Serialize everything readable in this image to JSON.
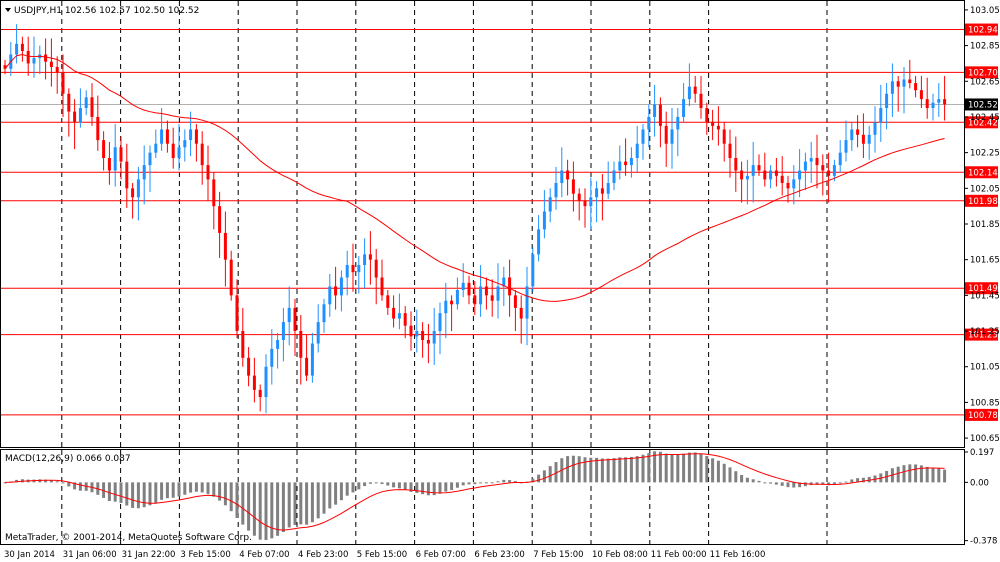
{
  "title": "USDJPY,H1  102.56 102.57 102.50 102.52",
  "copyright": "MetaTrader, © 2001-2014, MetaQuotes Software Corp.",
  "current_price": "102.52",
  "colors": {
    "bull": "#1e90ff",
    "bear": "#ff0000",
    "level": "#ff0000",
    "ma": "#ff0000",
    "histogram": "#808080",
    "signal": "#ff0000",
    "current": "#000000"
  },
  "chart_data": [
    {
      "type": "candlestick",
      "symbol": "USDJPY",
      "timeframe": "H1",
      "last_bar": {
        "open": 102.56,
        "high": 102.57,
        "low": 102.5,
        "close": 102.52
      },
      "ylim": [
        100.6,
        103.1
      ],
      "yticks": [
        "103.05",
        "102.85",
        "102.65",
        "102.45",
        "102.25",
        "102.05",
        "101.85",
        "101.65",
        "101.45",
        "101.25",
        "101.05",
        "100.85",
        "100.65"
      ],
      "xticks": [
        "30 Jan 2014",
        "31 Jan 06:00",
        "31 Jan 22:00",
        "3 Feb 15:00",
        "4 Feb 07:00",
        "4 Feb 23:00",
        "5 Feb 15:00",
        "6 Feb 07:00",
        "6 Feb 23:00",
        "7 Feb 15:00",
        "10 Feb 08:00",
        "11 Feb 00:00",
        "11 Feb 16:00"
      ],
      "levels": [
        "102.94",
        "102.70",
        "102.42",
        "102.14",
        "101.98",
        "101.49",
        "101.23",
        "100.78"
      ],
      "closes": [
        102.72,
        102.8,
        102.86,
        102.82,
        102.75,
        102.78,
        102.8,
        102.76,
        102.73,
        102.7,
        102.58,
        102.48,
        102.42,
        102.5,
        102.56,
        102.45,
        102.32,
        102.22,
        102.15,
        102.28,
        102.2,
        102.05,
        102.0,
        102.1,
        102.18,
        102.25,
        102.3,
        102.38,
        102.3,
        102.22,
        102.28,
        102.32,
        102.38,
        102.3,
        102.18,
        102.1,
        101.95,
        101.8,
        101.65,
        101.45,
        101.25,
        101.1,
        101.0,
        100.92,
        100.88,
        101.05,
        101.15,
        101.2,
        101.3,
        101.38,
        101.25,
        101.1,
        101.0,
        101.18,
        101.3,
        101.4,
        101.5,
        101.45,
        101.55,
        101.62,
        101.58,
        101.62,
        101.68,
        101.65,
        101.55,
        101.45,
        101.38,
        101.32,
        101.35,
        101.28,
        101.22,
        101.25,
        101.2,
        101.18,
        101.25,
        101.35,
        101.42,
        101.4,
        101.48,
        101.52,
        101.45,
        101.4,
        101.5,
        101.45,
        101.42,
        101.5,
        101.55,
        101.45,
        101.38,
        101.32,
        101.5,
        101.68,
        101.82,
        101.92,
        102.0,
        102.08,
        102.15,
        102.1,
        102.02,
        101.98,
        101.95,
        102.0,
        102.05,
        102.02,
        102.08,
        102.15,
        102.2,
        102.18,
        102.22,
        102.3,
        102.38,
        102.45,
        102.52,
        102.4,
        102.3,
        102.38,
        102.45,
        102.55,
        102.62,
        102.58,
        102.5,
        102.42,
        102.4,
        102.38,
        102.3,
        102.22,
        102.15,
        102.1,
        102.12,
        102.18,
        102.15,
        102.1,
        102.15,
        102.12,
        102.08,
        102.05,
        102.1,
        102.15,
        102.2,
        102.22,
        102.18,
        102.15,
        102.12,
        102.18,
        102.25,
        102.32,
        102.38,
        102.35,
        102.3,
        102.35,
        102.42,
        102.5,
        102.58,
        102.65,
        102.62,
        102.66,
        102.64,
        102.6,
        102.55,
        102.5,
        102.53,
        102.55,
        102.52
      ]
    },
    {
      "type": "bar",
      "indicator": "MACD(12,26,9)",
      "values_text": "MACD(12,26,9) 0.066 0.087",
      "macd": 0.066,
      "signal": 0.087,
      "ylim": [
        -0.4,
        0.21
      ],
      "yticks": [
        "0.197",
        "0.00",
        "-0.378"
      ]
    }
  ]
}
